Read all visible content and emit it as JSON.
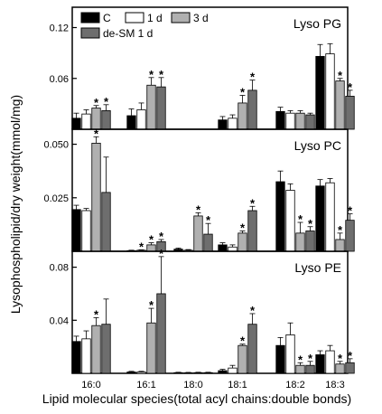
{
  "chart_data": {
    "type": "bar",
    "xlabel": "Lipid molecular species(total acyl chains:double bonds)",
    "ylabel": "Lysophospholipid/dry weight(mmol/mg)",
    "categories": [
      "16:0",
      "16:1",
      "18:0",
      "18:1",
      "18:2",
      "18:3"
    ],
    "legend": {
      "placement": "top-left",
      "entries": [
        {
          "name": "C",
          "color": "#000000"
        },
        {
          "name": "1 d",
          "color": "#ffffff"
        },
        {
          "name": "3 d",
          "color": "#b0b0b0"
        },
        {
          "name": "de-SM 1 d",
          "color": "#6e6e6e"
        }
      ]
    },
    "significance_marker": "*",
    "panels": [
      {
        "title": "Lyso PG",
        "ylim": [
          0,
          0.144
        ],
        "yticks": [
          0.06,
          0.12
        ],
        "ytick_labels": [
          "0.06",
          "0.12"
        ],
        "series": [
          {
            "name": "C",
            "values": [
              0.013,
              0.016,
              0,
              0.011,
              0.021,
              0.086
            ],
            "errors": [
              0.006,
              0.008,
              0,
              0.004,
              0.005,
              0.014
            ]
          },
          {
            "name": "1 d",
            "values": [
              0.018,
              0.023,
              0,
              0.013,
              0.019,
              0.089
            ],
            "errors": [
              0.005,
              0.008,
              0,
              0.004,
              0.003,
              0.012
            ]
          },
          {
            "name": "3 d",
            "values": [
              0.025,
              0.052,
              0,
              0.031,
              0.019,
              0.057
            ],
            "errors": [
              0.003,
              0.009,
              0,
              0.009,
              0.003,
              0.003
            ]
          },
          {
            "name": "de-SM 1 d",
            "values": [
              0.022,
              0.05,
              0,
              0.046,
              0.017,
              0.039
            ],
            "errors": [
              0.007,
              0.011,
              0,
              0.012,
              0.002,
              0.007
            ]
          }
        ],
        "stars": [
          {
            "category": "16:0",
            "series": "3 d"
          },
          {
            "category": "16:0",
            "series": "de-SM 1 d"
          },
          {
            "category": "16:1",
            "series": "3 d"
          },
          {
            "category": "16:1",
            "series": "de-SM 1 d"
          },
          {
            "category": "18:1",
            "series": "3 d"
          },
          {
            "category": "18:1",
            "series": "de-SM 1 d"
          },
          {
            "category": "18:3",
            "series": "3 d"
          },
          {
            "category": "18:3",
            "series": "de-SM 1 d"
          }
        ]
      },
      {
        "title": "Lyso PC",
        "ylim": [
          0,
          0.057
        ],
        "yticks": [
          0.025,
          0.05
        ],
        "ytick_labels": [
          "0.025",
          "0.050"
        ],
        "series": [
          {
            "name": "C",
            "values": [
              0.0195,
              0.0003,
              0.001,
              0.003,
              0.0325,
              0.0305
            ],
            "errors": [
              0.002,
              0.0002,
              0.0005,
              0.001,
              0.005,
              0.003
            ]
          },
          {
            "name": "1 d",
            "values": [
              0.019,
              0.0005,
              0.0005,
              0.002,
              0.0285,
              0.032
            ],
            "errors": [
              0.001,
              0.0002,
              0.0003,
              0.001,
              0.003,
              0.002
            ]
          },
          {
            "name": "3 d",
            "values": [
              0.0505,
              0.003,
              0.0165,
              0.0085,
              0.0085,
              0.0055
            ],
            "errors": [
              0.003,
              0.001,
              0.0015,
              0.001,
              0.005,
              0.003
            ]
          },
          {
            "name": "de-SM 1 d",
            "values": [
              0.0275,
              0.0045,
              0.008,
              0.019,
              0.0095,
              0.0145
            ],
            "errors": [
              0.0165,
              0.001,
              0.005,
              0.002,
              0.002,
              0.003
            ]
          }
        ],
        "stars": [
          {
            "category": "16:0",
            "series": "3 d"
          },
          {
            "category": "16:1",
            "series": "1 d"
          },
          {
            "category": "16:1",
            "series": "3 d"
          },
          {
            "category": "16:1",
            "series": "de-SM 1 d"
          },
          {
            "category": "18:0",
            "series": "3 d"
          },
          {
            "category": "18:0",
            "series": "de-SM 1 d"
          },
          {
            "category": "18:1",
            "series": "3 d"
          },
          {
            "category": "18:1",
            "series": "de-SM 1 d"
          },
          {
            "category": "18:2",
            "series": "3 d"
          },
          {
            "category": "18:2",
            "series": "de-SM 1 d"
          },
          {
            "category": "18:3",
            "series": "3 d"
          },
          {
            "category": "18:3",
            "series": "de-SM 1 d"
          }
        ]
      },
      {
        "title": "Lyso PE",
        "ylim": [
          0,
          0.092
        ],
        "yticks": [
          0.04,
          0.08
        ],
        "ytick_labels": [
          "0.04",
          "0.08"
        ],
        "series": [
          {
            "name": "C",
            "values": [
              0.024,
              0.001,
              0.0005,
              0.002,
              0.021,
              0.014
            ],
            "errors": [
              0.004,
              0.0005,
              0.0003,
              0.001,
              0.006,
              0.003
            ]
          },
          {
            "name": "1 d",
            "values": [
              0.026,
              0.001,
              0.0004,
              0.004,
              0.029,
              0.017
            ],
            "errors": [
              0.006,
              0.0005,
              0.0003,
              0.002,
              0.009,
              0.004
            ]
          },
          {
            "name": "3 d",
            "values": [
              0.036,
              0.038,
              0.0005,
              0.021,
              0.006,
              0.007
            ],
            "errors": [
              0.006,
              0.011,
              0.0003,
              0.001,
              0.002,
              0.002
            ]
          },
          {
            "name": "de-SM 1 d",
            "values": [
              0.037,
              0.06,
              0.0005,
              0.037,
              0.006,
              0.008
            ],
            "errors": [
              0.019,
              0.028,
              0.0003,
              0.008,
              0.003,
              0.003
            ]
          }
        ],
        "stars": [
          {
            "category": "16:0",
            "series": "3 d"
          },
          {
            "category": "16:1",
            "series": "3 d"
          },
          {
            "category": "16:1",
            "series": "de-SM 1 d"
          },
          {
            "category": "18:1",
            "series": "3 d"
          },
          {
            "category": "18:1",
            "series": "de-SM 1 d"
          },
          {
            "category": "18:2",
            "series": "3 d"
          },
          {
            "category": "18:2",
            "series": "de-SM 1 d"
          },
          {
            "category": "18:3",
            "series": "3 d"
          },
          {
            "category": "18:3",
            "series": "de-SM 1 d"
          }
        ]
      }
    ]
  }
}
